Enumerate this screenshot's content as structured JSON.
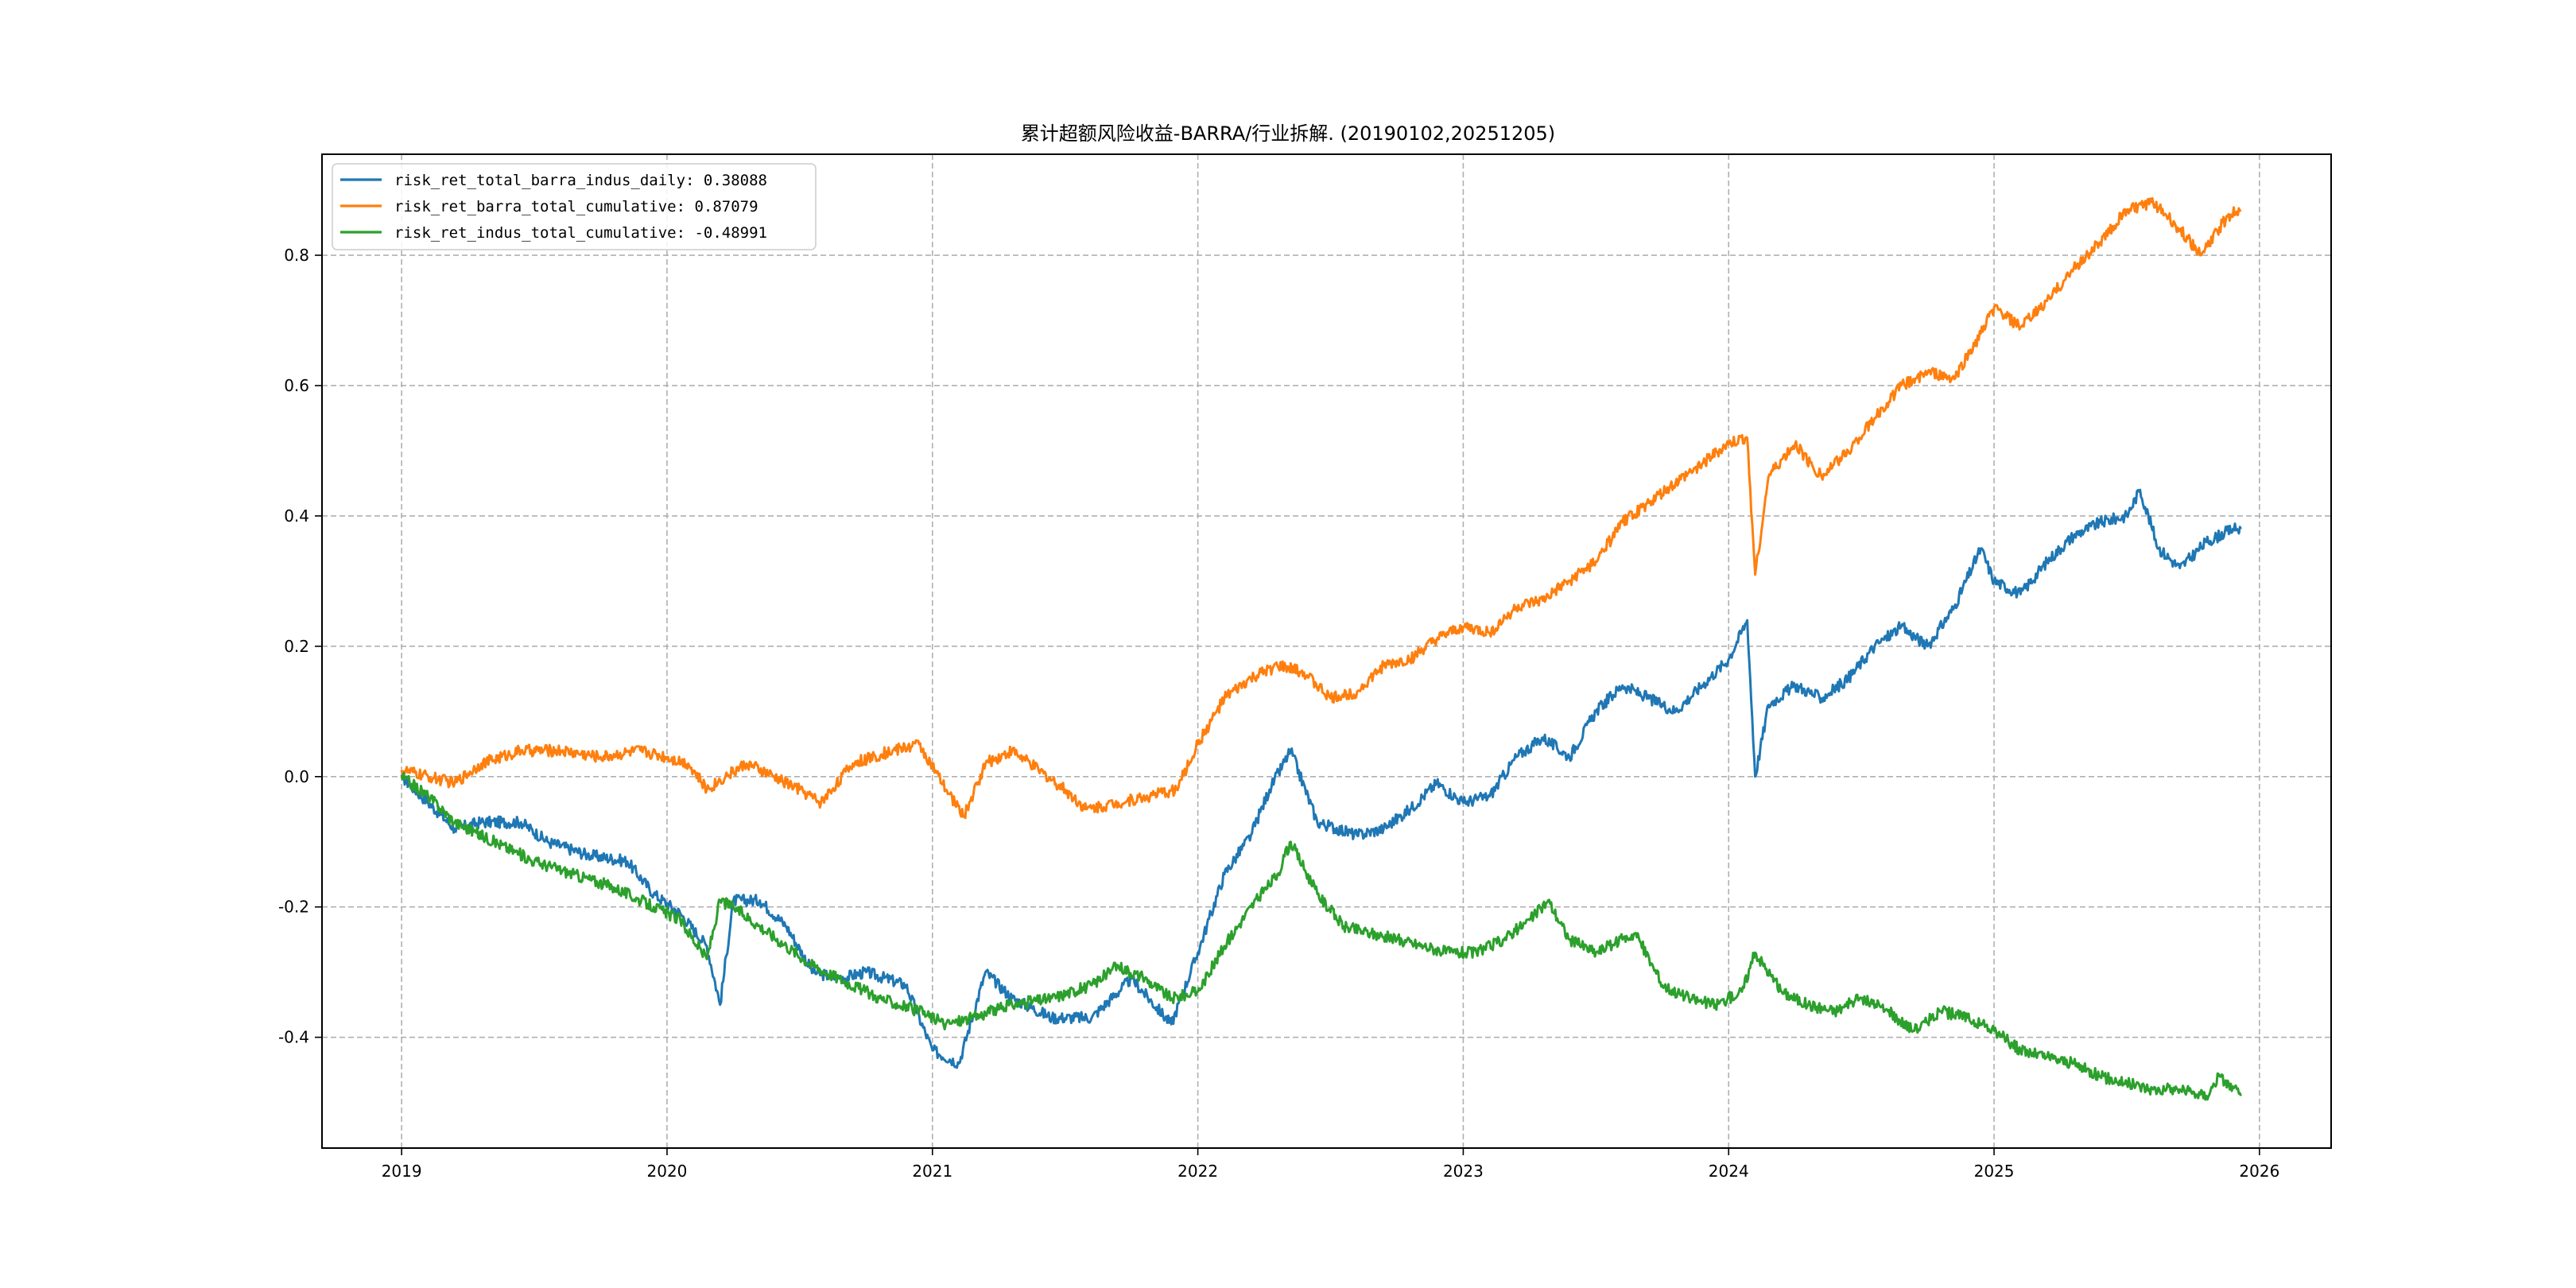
{
  "chart_data": {
    "type": "line",
    "title": "累计超额风险收益-BARRA/行业拆解. (20190102,20251205)",
    "xlabel": "",
    "ylabel": "",
    "x_ticks": [
      "2019",
      "2020",
      "2021",
      "2022",
      "2023",
      "2024",
      "2025",
      "2026"
    ],
    "y_ticks": [
      "-0.4",
      "-0.2",
      "0.0",
      "0.2",
      "0.4",
      "0.6",
      "0.8"
    ],
    "xlim": [
      2018.7,
      2026.27
    ],
    "ylim": [
      -0.57,
      0.955
    ],
    "grid": true,
    "legend_position": "top-left",
    "colors": {
      "blue": "#1f77b4",
      "orange": "#ff7f0e",
      "green": "#2ca02c",
      "grid": "#b0b0b0"
    },
    "series": [
      {
        "name": "risk_ret_total_barra_indus_daily",
        "legend_label": "risk_ret_total_barra_indus_daily: 0.38088",
        "color": "#1f77b4",
        "x": [
          2019.0,
          2019.1,
          2019.2,
          2019.3,
          2019.45,
          2019.55,
          2019.7,
          2019.85,
          2019.95,
          2020.05,
          2020.15,
          2020.2,
          2020.25,
          2020.35,
          2020.45,
          2020.55,
          2020.65,
          2020.75,
          2020.9,
          2021.0,
          2021.1,
          2021.2,
          2021.3,
          2021.45,
          2021.6,
          2021.75,
          2021.9,
          2022.0,
          2022.1,
          2022.2,
          2022.27,
          2022.35,
          2022.45,
          2022.6,
          2022.7,
          2022.8,
          2022.9,
          2023.0,
          2023.1,
          2023.2,
          2023.3,
          2023.4,
          2023.5,
          2023.6,
          2023.7,
          2023.8,
          2023.9,
          2024.0,
          2024.07,
          2024.1,
          2024.15,
          2024.25,
          2024.35,
          2024.45,
          2024.55,
          2024.65,
          2024.75,
          2024.85,
          2024.95,
          2025.0,
          2025.1,
          2025.2,
          2025.3,
          2025.4,
          2025.5,
          2025.55,
          2025.62,
          2025.7,
          2025.8,
          2025.9,
          2025.93
        ],
        "values": [
          0.0,
          -0.04,
          -0.08,
          -0.07,
          -0.07,
          -0.1,
          -0.12,
          -0.13,
          -0.18,
          -0.21,
          -0.26,
          -0.35,
          -0.19,
          -0.19,
          -0.23,
          -0.3,
          -0.31,
          -0.3,
          -0.32,
          -0.42,
          -0.44,
          -0.3,
          -0.34,
          -0.37,
          -0.37,
          -0.31,
          -0.38,
          -0.27,
          -0.15,
          -0.09,
          -0.02,
          0.04,
          -0.07,
          -0.09,
          -0.08,
          -0.05,
          -0.01,
          -0.04,
          -0.03,
          0.03,
          0.06,
          0.03,
          0.1,
          0.14,
          0.12,
          0.1,
          0.14,
          0.18,
          0.24,
          0.0,
          0.11,
          0.14,
          0.12,
          0.15,
          0.2,
          0.23,
          0.2,
          0.26,
          0.35,
          0.3,
          0.28,
          0.33,
          0.37,
          0.39,
          0.4,
          0.44,
          0.35,
          0.32,
          0.36,
          0.38,
          0.38
        ]
      },
      {
        "name": "risk_ret_barra_total_cumulative",
        "legend_label": "risk_ret_barra_total_cumulative: 0.87079",
        "color": "#ff7f0e",
        "x": [
          2019.0,
          2019.1,
          2019.2,
          2019.3,
          2019.45,
          2019.6,
          2019.75,
          2019.9,
          2020.0,
          2020.08,
          2020.15,
          2020.22,
          2020.3,
          2020.4,
          2020.5,
          2020.58,
          2020.7,
          2020.85,
          2020.95,
          2021.05,
          2021.12,
          2021.2,
          2021.3,
          2021.4,
          2021.5,
          2021.58,
          2021.7,
          2021.82,
          2021.92,
          2022.0,
          2022.1,
          2022.2,
          2022.3,
          2022.4,
          2022.5,
          2022.6,
          2022.7,
          2022.8,
          2022.9,
          2023.0,
          2023.1,
          2023.2,
          2023.3,
          2023.4,
          2023.5,
          2023.6,
          2023.7,
          2023.8,
          2023.9,
          2024.0,
          2024.07,
          2024.1,
          2024.15,
          2024.25,
          2024.35,
          2024.45,
          2024.55,
          2024.65,
          2024.75,
          2024.85,
          2024.95,
          2025.0,
          2025.1,
          2025.2,
          2025.3,
          2025.4,
          2025.5,
          2025.6,
          2025.7,
          2025.78,
          2025.88,
          2025.93
        ],
        "values": [
          0.01,
          0.0,
          -0.01,
          0.02,
          0.04,
          0.04,
          0.03,
          0.04,
          0.03,
          0.02,
          -0.02,
          0.0,
          0.02,
          0.0,
          -0.02,
          -0.04,
          0.02,
          0.04,
          0.05,
          -0.02,
          -0.06,
          0.02,
          0.04,
          0.01,
          -0.02,
          -0.05,
          -0.04,
          -0.03,
          -0.02,
          0.05,
          0.12,
          0.15,
          0.17,
          0.16,
          0.12,
          0.13,
          0.17,
          0.18,
          0.21,
          0.23,
          0.22,
          0.26,
          0.27,
          0.3,
          0.33,
          0.39,
          0.42,
          0.45,
          0.48,
          0.51,
          0.52,
          0.31,
          0.46,
          0.51,
          0.46,
          0.5,
          0.55,
          0.6,
          0.62,
          0.61,
          0.68,
          0.72,
          0.69,
          0.73,
          0.78,
          0.82,
          0.87,
          0.88,
          0.84,
          0.8,
          0.86,
          0.87
        ]
      },
      {
        "name": "risk_ret_indus_total_cumulative",
        "legend_label": "risk_ret_indus_total_cumulative: -0.48991",
        "color": "#2ca02c",
        "x": [
          2019.0,
          2019.1,
          2019.2,
          2019.35,
          2019.5,
          2019.65,
          2019.8,
          2019.95,
          2020.05,
          2020.15,
          2020.2,
          2020.25,
          2020.35,
          2020.45,
          2020.55,
          2020.65,
          2020.8,
          2020.95,
          2021.05,
          2021.15,
          2021.3,
          2021.45,
          2021.6,
          2021.7,
          2021.8,
          2021.9,
          2022.0,
          2022.1,
          2022.2,
          2022.3,
          2022.35,
          2022.45,
          2022.55,
          2022.65,
          2022.75,
          2022.85,
          2022.95,
          2023.05,
          2023.15,
          2023.25,
          2023.32,
          2023.4,
          2023.5,
          2023.6,
          2023.65,
          2023.75,
          2023.85,
          2023.95,
          2024.05,
          2024.1,
          2024.2,
          2024.3,
          2024.4,
          2024.5,
          2024.6,
          2024.7,
          2024.8,
          2024.9,
          2025.0,
          2025.1,
          2025.2,
          2025.3,
          2025.4,
          2025.5,
          2025.6,
          2025.7,
          2025.8,
          2025.85,
          2025.93
        ],
        "values": [
          0.0,
          -0.03,
          -0.07,
          -0.1,
          -0.13,
          -0.15,
          -0.17,
          -0.2,
          -0.22,
          -0.28,
          -0.19,
          -0.2,
          -0.23,
          -0.26,
          -0.29,
          -0.31,
          -0.34,
          -0.36,
          -0.38,
          -0.37,
          -0.35,
          -0.34,
          -0.32,
          -0.29,
          -0.31,
          -0.34,
          -0.33,
          -0.26,
          -0.2,
          -0.15,
          -0.1,
          -0.18,
          -0.23,
          -0.24,
          -0.25,
          -0.26,
          -0.27,
          -0.27,
          -0.25,
          -0.22,
          -0.19,
          -0.25,
          -0.27,
          -0.25,
          -0.24,
          -0.32,
          -0.34,
          -0.35,
          -0.33,
          -0.27,
          -0.33,
          -0.35,
          -0.36,
          -0.34,
          -0.36,
          -0.39,
          -0.36,
          -0.37,
          -0.39,
          -0.42,
          -0.43,
          -0.44,
          -0.46,
          -0.47,
          -0.48,
          -0.48,
          -0.49,
          -0.46,
          -0.49
        ]
      }
    ]
  }
}
